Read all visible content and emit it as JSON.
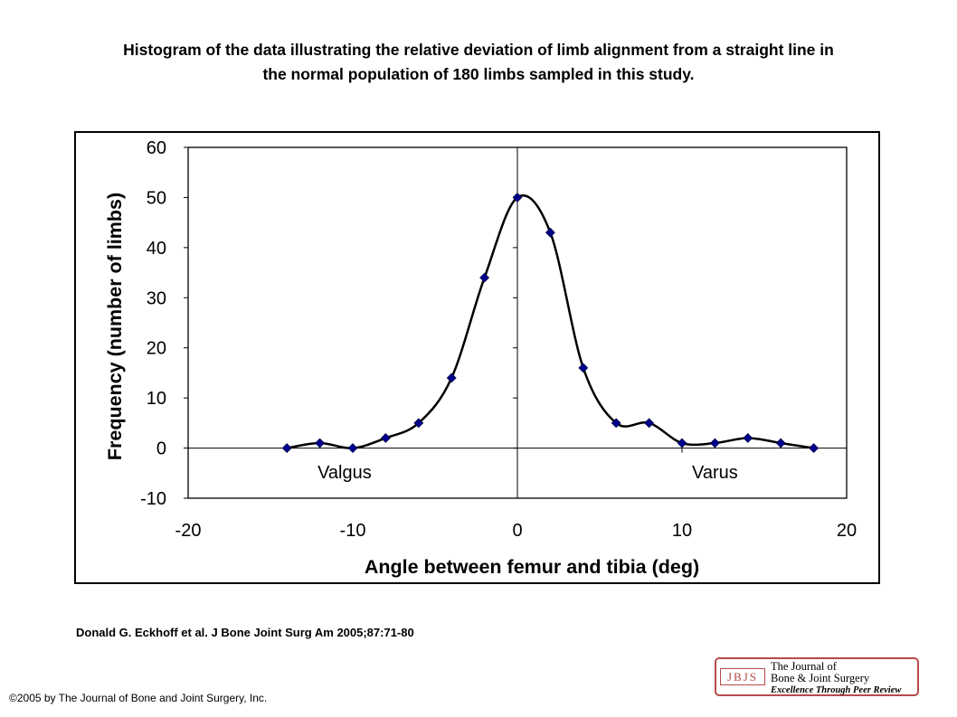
{
  "title_line1": "Histogram of the data illustrating the relative deviation of limb alignment from a straight line in",
  "title_line2": "the normal population of 180 limbs sampled in this study.",
  "citation": "Donald G. Eckhoff et al. J Bone Joint Surg Am 2005;87:71-80",
  "copyright": "©2005 by The Journal of Bone and Joint Surgery, Inc.",
  "logo": {
    "mark": "JBJS",
    "line1": "The Journal of",
    "line2": "Bone & Joint Surgery",
    "tagline": "Excellence Through Peer Review"
  },
  "colors": {
    "marker": "#00008b",
    "line": "#000000",
    "logo_accent": "#b84a4a"
  },
  "chart_data": {
    "type": "line",
    "xlabel": "Angle between femur and tibia (deg)",
    "ylabel": "Frequency (number of limbs)",
    "xlim": [
      -20,
      20
    ],
    "ylim": [
      -10,
      60
    ],
    "x_ticks": [
      -20,
      -10,
      0,
      10,
      20
    ],
    "y_ticks": [
      -10,
      0,
      10,
      20,
      30,
      40,
      50,
      60
    ],
    "grid": false,
    "smoothed": true,
    "series": [
      {
        "x": [
          -14,
          -12,
          -10,
          -8,
          -6,
          -4,
          -2,
          0,
          2,
          4,
          6,
          8,
          10,
          12,
          14,
          16,
          18
        ],
        "y": [
          0,
          1,
          0,
          2,
          5,
          14,
          34,
          50,
          43,
          16,
          5,
          5,
          1,
          1,
          2,
          1,
          0
        ]
      }
    ],
    "annotations": [
      {
        "text": "Valgus",
        "x": -10.5,
        "y": -6
      },
      {
        "text": "Varus",
        "x": 12,
        "y": -6
      }
    ]
  }
}
